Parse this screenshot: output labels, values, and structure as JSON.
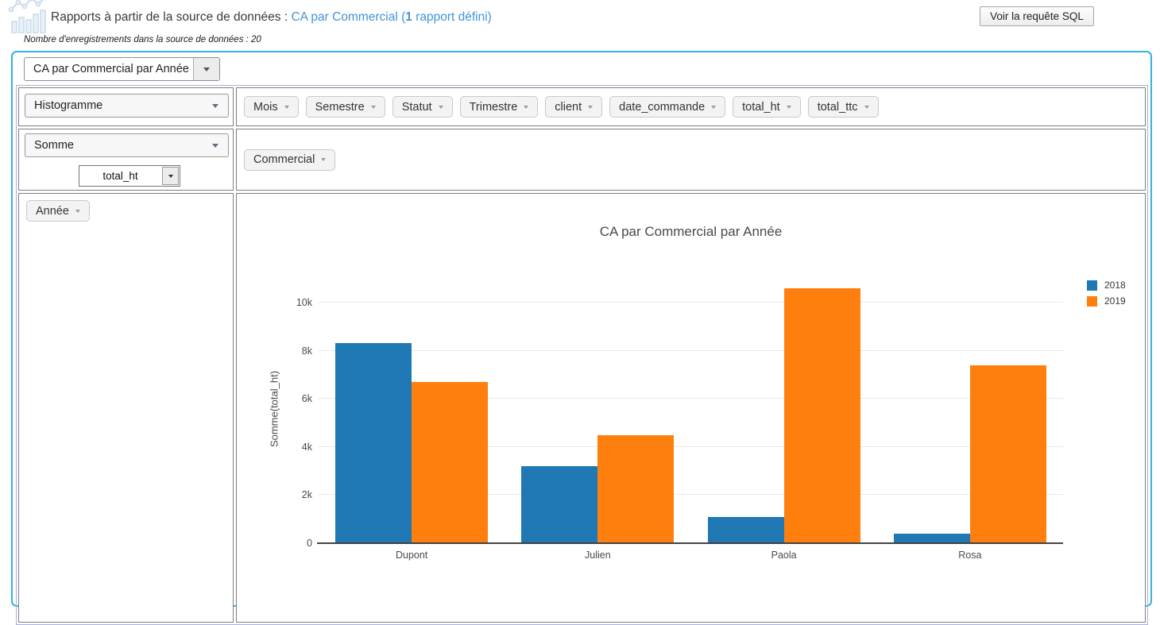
{
  "header": {
    "title_prefix": "Rapports à partir de la source de données : ",
    "link_pre": "CA par Commercial (",
    "report_count": "1",
    "link_post": " rapport défini)",
    "records_line": "Nombre d'enregistrements dans la source de données : 20",
    "sql_button_label": "Voir la requête SQL",
    "logo_icon": "line-and-bar-chart-sketch-icon"
  },
  "toolbar": {
    "report_select_value": "CA par Commercial par Année",
    "icons": [
      "save-icon",
      "edit-icon",
      "copy-icon",
      "add-icon",
      "trash-icon"
    ]
  },
  "pivot": {
    "renderer_select_value": "Histogramme",
    "aggregator_select_value": "Somme",
    "aggregator_field_value": "total_ht",
    "unused_attributes": [
      "Mois",
      "Semestre",
      "Statut",
      "Trimestre",
      "client",
      "date_commande",
      "total_ht",
      "total_ttc"
    ],
    "column_attributes": [
      "Commercial"
    ],
    "row_attributes": [
      "Année"
    ]
  },
  "chart_data": {
    "type": "bar",
    "title": "CA par Commercial par Année",
    "categories": [
      "Dupont",
      "Julien",
      "Paola",
      "Rosa"
    ],
    "series": [
      {
        "name": "2018",
        "color": "#1f77b4",
        "values": [
          8300,
          3200,
          1100,
          400
        ]
      },
      {
        "name": "2019",
        "color": "#ff7f0e",
        "values": [
          6700,
          4500,
          10600,
          7400
        ]
      }
    ],
    "xlabel": "",
    "ylabel": "Somme(total_ht)",
    "yticks": [
      "0",
      "2k",
      "4k",
      "6k",
      "8k",
      "10k"
    ],
    "ytick_values": [
      0,
      2000,
      4000,
      6000,
      8000,
      10000
    ],
    "ylim": [
      0,
      11150
    ],
    "grid": true,
    "legend_position": "right-top",
    "bar_mode": "group"
  },
  "colors": {
    "panel_border": "#35b2e0",
    "table_border": "#a9b0dc",
    "cell_border": "#7e7e7e",
    "link_blue": "#4193d8",
    "series_2018": "#1f77b4",
    "series_2019": "#ff7f0e"
  }
}
